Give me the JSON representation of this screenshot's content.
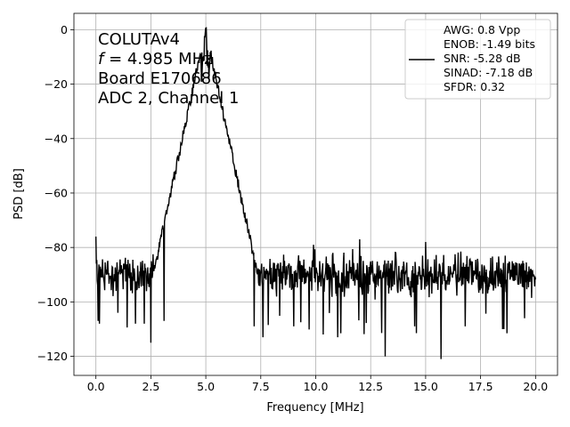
{
  "chart_data": {
    "type": "line",
    "title": "",
    "xlabel": "Frequency [MHz]",
    "ylabel": "PSD [dB]",
    "xlim": [
      -1.0,
      21.0
    ],
    "ylim": [
      -127,
      6
    ],
    "grid": true,
    "x_ticks": [
      0.0,
      2.5,
      5.0,
      7.5,
      10.0,
      12.5,
      15.0,
      17.5,
      20.0
    ],
    "x_tick_labels": [
      "0.0",
      "2.5",
      "5.0",
      "7.5",
      "10.0",
      "12.5",
      "15.0",
      "17.5",
      "20.0"
    ],
    "y_ticks": [
      0,
      -20,
      -40,
      -60,
      -80,
      -100,
      -120
    ],
    "y_tick_labels": [
      "0",
      "−20",
      "−40",
      "−60",
      "−80",
      "−100",
      "−120"
    ],
    "annotation": {
      "line1": "COLUTAv4",
      "line2_italic": "f",
      "line2_rest": " = 4.985 MHz",
      "line3": "Board E170686",
      "line4": "ADC 2, Channel 1"
    },
    "legend": {
      "placement": "top-right",
      "lines": [
        "AWG: 0.8 Vpp",
        "ENOB: -1.49 bits",
        "SNR: -5.28 dB",
        "SINAD: -7.18 dB",
        "SFDR: 0.32"
      ]
    },
    "series": [
      {
        "color": "#000000",
        "x_start": 0.0,
        "x_step": 0.02,
        "noise_floor_mean": -90,
        "noise_floor_range": [
          -80,
          -100
        ],
        "peak": {
          "x": 4.985,
          "y": 0
        },
        "notable_points": [
          {
            "x": 0.0,
            "y": -76
          },
          {
            "x": 0.1,
            "y": -107
          },
          {
            "x": 0.15,
            "y": -108
          },
          {
            "x": 1.0,
            "y": -104
          },
          {
            "x": 1.8,
            "y": -108
          },
          {
            "x": 2.2,
            "y": -108
          },
          {
            "x": 2.5,
            "y": -115
          },
          {
            "x": 3.1,
            "y": -107
          },
          {
            "x": 7.2,
            "y": -109
          },
          {
            "x": 7.6,
            "y": -113
          },
          {
            "x": 9.0,
            "y": -109
          },
          {
            "x": 11.0,
            "y": -113
          },
          {
            "x": 12.0,
            "y": -108
          },
          {
            "x": 13.15,
            "y": -120
          },
          {
            "x": 14.5,
            "y": -109
          },
          {
            "x": 15.7,
            "y": -121
          },
          {
            "x": 16.8,
            "y": -109
          },
          {
            "x": 18.5,
            "y": -110
          },
          {
            "x": 19.5,
            "y": -106
          },
          {
            "x": 9.9,
            "y": -79
          },
          {
            "x": 12.0,
            "y": -77
          },
          {
            "x": 15.0,
            "y": -78
          }
        ]
      }
    ]
  }
}
